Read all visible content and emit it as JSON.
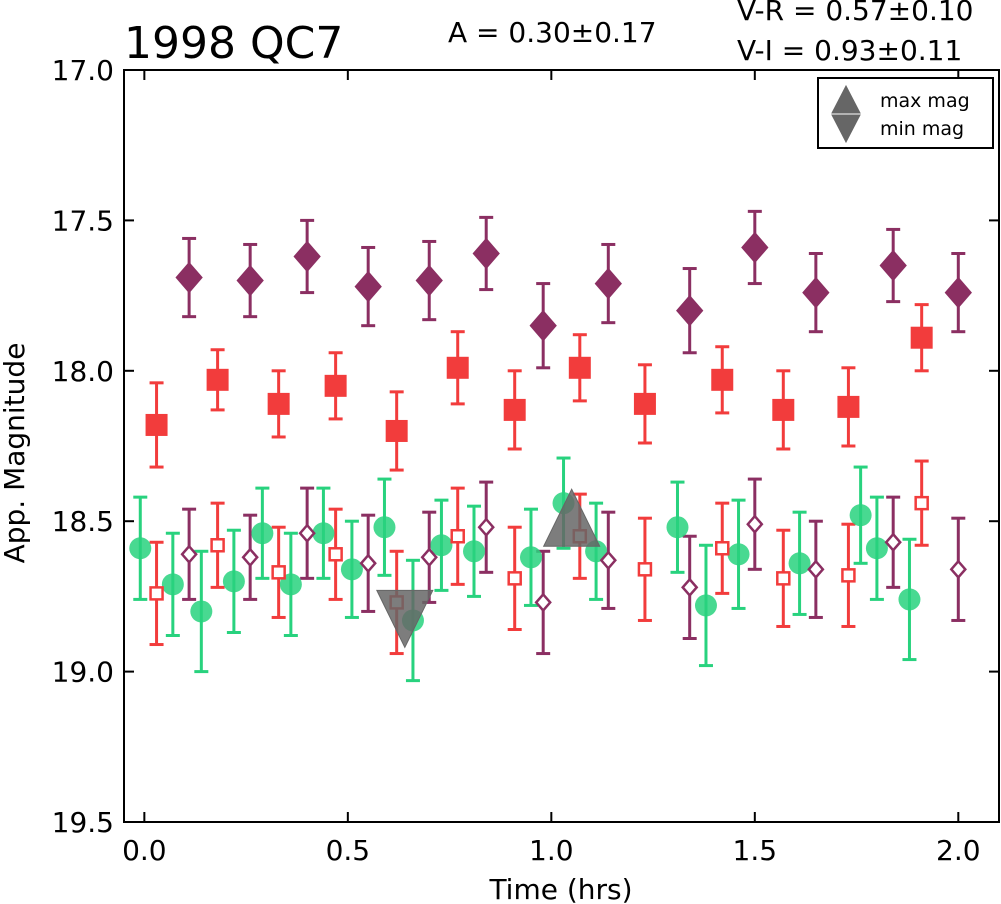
{
  "chart_data": {
    "type": "scatter",
    "title": "1998 QC7",
    "annotations": {
      "amplitude": "A  = 0.30±0.17",
      "v_r": "V-R = 0.57±0.10",
      "v_i": "V-I  = 0.93±0.11"
    },
    "xlabel": "Time (hrs)",
    "ylabel": "App. Magnitude",
    "xlim": [
      -0.05,
      2.1
    ],
    "ylim": [
      19.5,
      17.0
    ],
    "y_inverted": true,
    "xticks": [
      "0.0",
      "0.5",
      "1.0",
      "1.5",
      "2.0"
    ],
    "xtick_values": [
      0.0,
      0.5,
      1.0,
      1.5,
      2.0
    ],
    "yticks": [
      "17.0",
      "17.5",
      "18.0",
      "18.5",
      "19.0",
      "19.5"
    ],
    "ytick_values": [
      17.0,
      17.5,
      18.0,
      18.5,
      19.0,
      19.5
    ],
    "grid": false,
    "legend": {
      "placement": "top-right",
      "entries": [
        "max mag",
        "min mag"
      ]
    },
    "series": [
      {
        "marker": "diamond-filled",
        "color": "#8b2f62",
        "points": [
          {
            "x": 0.11,
            "y": 17.69,
            "err": 0.13
          },
          {
            "x": 0.26,
            "y": 17.7,
            "err": 0.12
          },
          {
            "x": 0.4,
            "y": 17.62,
            "err": 0.12
          },
          {
            "x": 0.55,
            "y": 17.72,
            "err": 0.13
          },
          {
            "x": 0.7,
            "y": 17.7,
            "err": 0.13
          },
          {
            "x": 0.84,
            "y": 17.61,
            "err": 0.12
          },
          {
            "x": 0.98,
            "y": 17.85,
            "err": 0.14
          },
          {
            "x": 1.14,
            "y": 17.71,
            "err": 0.13
          },
          {
            "x": 1.34,
            "y": 17.8,
            "err": 0.14
          },
          {
            "x": 1.5,
            "y": 17.59,
            "err": 0.12
          },
          {
            "x": 1.65,
            "y": 17.74,
            "err": 0.13
          },
          {
            "x": 1.84,
            "y": 17.65,
            "err": 0.12
          },
          {
            "x": 2.0,
            "y": 17.74,
            "err": 0.13
          }
        ]
      },
      {
        "marker": "square-filled",
        "color": "#f23c3c",
        "points": [
          {
            "x": 0.03,
            "y": 18.18,
            "err": 0.14
          },
          {
            "x": 0.18,
            "y": 18.03,
            "err": 0.1
          },
          {
            "x": 0.33,
            "y": 18.11,
            "err": 0.11
          },
          {
            "x": 0.47,
            "y": 18.05,
            "err": 0.11
          },
          {
            "x": 0.62,
            "y": 18.2,
            "err": 0.13
          },
          {
            "x": 0.77,
            "y": 17.99,
            "err": 0.12
          },
          {
            "x": 0.91,
            "y": 18.13,
            "err": 0.13
          },
          {
            "x": 1.07,
            "y": 17.99,
            "err": 0.11
          },
          {
            "x": 1.23,
            "y": 18.11,
            "err": 0.13
          },
          {
            "x": 1.42,
            "y": 18.03,
            "err": 0.11
          },
          {
            "x": 1.57,
            "y": 18.13,
            "err": 0.13
          },
          {
            "x": 1.73,
            "y": 18.12,
            "err": 0.13
          },
          {
            "x": 1.91,
            "y": 17.89,
            "err": 0.11
          }
        ]
      },
      {
        "marker": "circle-filled",
        "color": "#28d27e",
        "points": [
          {
            "x": -0.01,
            "y": 18.59,
            "err": 0.17
          },
          {
            "x": 0.07,
            "y": 18.71,
            "err": 0.17
          },
          {
            "x": 0.14,
            "y": 18.8,
            "err": 0.2
          },
          {
            "x": 0.22,
            "y": 18.7,
            "err": 0.17
          },
          {
            "x": 0.29,
            "y": 18.54,
            "err": 0.15
          },
          {
            "x": 0.36,
            "y": 18.71,
            "err": 0.17
          },
          {
            "x": 0.44,
            "y": 18.54,
            "err": 0.15
          },
          {
            "x": 0.51,
            "y": 18.66,
            "err": 0.16
          },
          {
            "x": 0.59,
            "y": 18.52,
            "err": 0.16
          },
          {
            "x": 0.66,
            "y": 18.83,
            "err": 0.2
          },
          {
            "x": 0.73,
            "y": 18.58,
            "err": 0.15
          },
          {
            "x": 0.81,
            "y": 18.6,
            "err": 0.15
          },
          {
            "x": 0.95,
            "y": 18.62,
            "err": 0.16
          },
          {
            "x": 1.03,
            "y": 18.44,
            "err": 0.15
          },
          {
            "x": 1.11,
            "y": 18.6,
            "err": 0.16
          },
          {
            "x": 1.31,
            "y": 18.52,
            "err": 0.15
          },
          {
            "x": 1.38,
            "y": 18.78,
            "err": 0.2
          },
          {
            "x": 1.46,
            "y": 18.61,
            "err": 0.18
          },
          {
            "x": 1.61,
            "y": 18.64,
            "err": 0.17
          },
          {
            "x": 1.76,
            "y": 18.48,
            "err": 0.16
          },
          {
            "x": 1.8,
            "y": 18.59,
            "err": 0.17
          },
          {
            "x": 1.88,
            "y": 18.76,
            "err": 0.2
          }
        ]
      },
      {
        "marker": "square-open",
        "color": "#f23c3c",
        "points": [
          {
            "x": 0.03,
            "y": 18.74,
            "err": 0.17
          },
          {
            "x": 0.18,
            "y": 18.58,
            "err": 0.14
          },
          {
            "x": 0.33,
            "y": 18.67,
            "err": 0.15
          },
          {
            "x": 0.47,
            "y": 18.61,
            "err": 0.15
          },
          {
            "x": 0.62,
            "y": 18.77,
            "err": 0.17
          },
          {
            "x": 0.77,
            "y": 18.55,
            "err": 0.16
          },
          {
            "x": 0.91,
            "y": 18.69,
            "err": 0.17
          },
          {
            "x": 1.07,
            "y": 18.55,
            "err": 0.14
          },
          {
            "x": 1.23,
            "y": 18.66,
            "err": 0.17
          },
          {
            "x": 1.42,
            "y": 18.59,
            "err": 0.15
          },
          {
            "x": 1.57,
            "y": 18.69,
            "err": 0.16
          },
          {
            "x": 1.73,
            "y": 18.68,
            "err": 0.17
          },
          {
            "x": 1.91,
            "y": 18.44,
            "err": 0.14
          }
        ]
      },
      {
        "marker": "diamond-open",
        "color": "#8b2f62",
        "points": [
          {
            "x": 0.11,
            "y": 18.61,
            "err": 0.15
          },
          {
            "x": 0.26,
            "y": 18.62,
            "err": 0.14
          },
          {
            "x": 0.4,
            "y": 18.54,
            "err": 0.15
          },
          {
            "x": 0.55,
            "y": 18.64,
            "err": 0.16
          },
          {
            "x": 0.7,
            "y": 18.62,
            "err": 0.15
          },
          {
            "x": 0.84,
            "y": 18.52,
            "err": 0.15
          },
          {
            "x": 0.98,
            "y": 18.77,
            "err": 0.17
          },
          {
            "x": 1.14,
            "y": 18.63,
            "err": 0.16
          },
          {
            "x": 1.34,
            "y": 18.72,
            "err": 0.17
          },
          {
            "x": 1.5,
            "y": 18.51,
            "err": 0.15
          },
          {
            "x": 1.65,
            "y": 18.66,
            "err": 0.16
          },
          {
            "x": 1.84,
            "y": 18.57,
            "err": 0.15
          },
          {
            "x": 2.0,
            "y": 18.66,
            "err": 0.17
          }
        ]
      }
    ],
    "extrema": [
      {
        "label": "max mag",
        "marker": "triangle-up",
        "color": "#666666",
        "x": 1.05,
        "y": 18.5
      },
      {
        "label": "min mag",
        "marker": "triangle-down",
        "color": "#666666",
        "x": 0.64,
        "y": 18.78
      }
    ]
  }
}
